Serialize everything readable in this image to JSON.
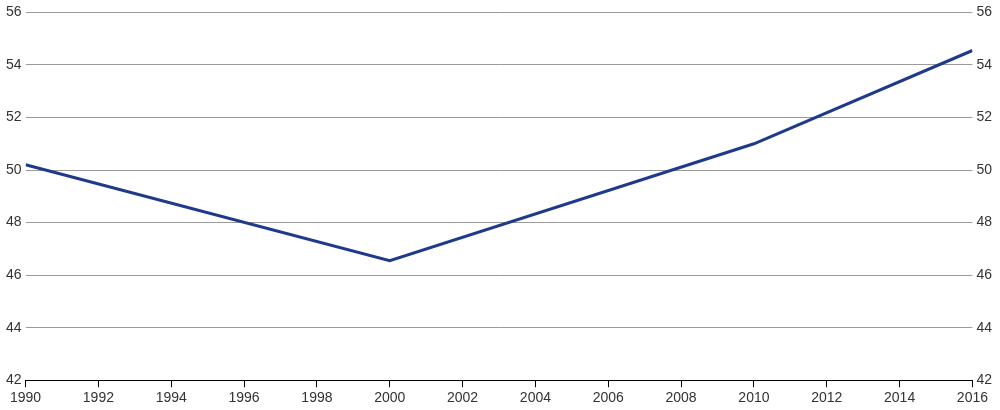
{
  "chart_data": {
    "type": "line",
    "x": [
      1990,
      2000,
      2010,
      2016
    ],
    "values": [
      50.2,
      46.55,
      51.0,
      54.55
    ],
    "color": "#1f3a8a",
    "xlim": [
      1990,
      2016
    ],
    "xticks": [
      1990,
      1992,
      1994,
      1996,
      1998,
      2000,
      2002,
      2004,
      2006,
      2008,
      2010,
      2012,
      2014,
      2016
    ],
    "ylim": [
      42,
      56
    ],
    "yticks": [
      42,
      44,
      46,
      48,
      50,
      52,
      54,
      56
    ],
    "y2lim": [
      42,
      56
    ],
    "y2ticks": [
      42,
      44,
      46,
      48,
      50,
      52,
      54,
      56
    ],
    "grid": true
  }
}
